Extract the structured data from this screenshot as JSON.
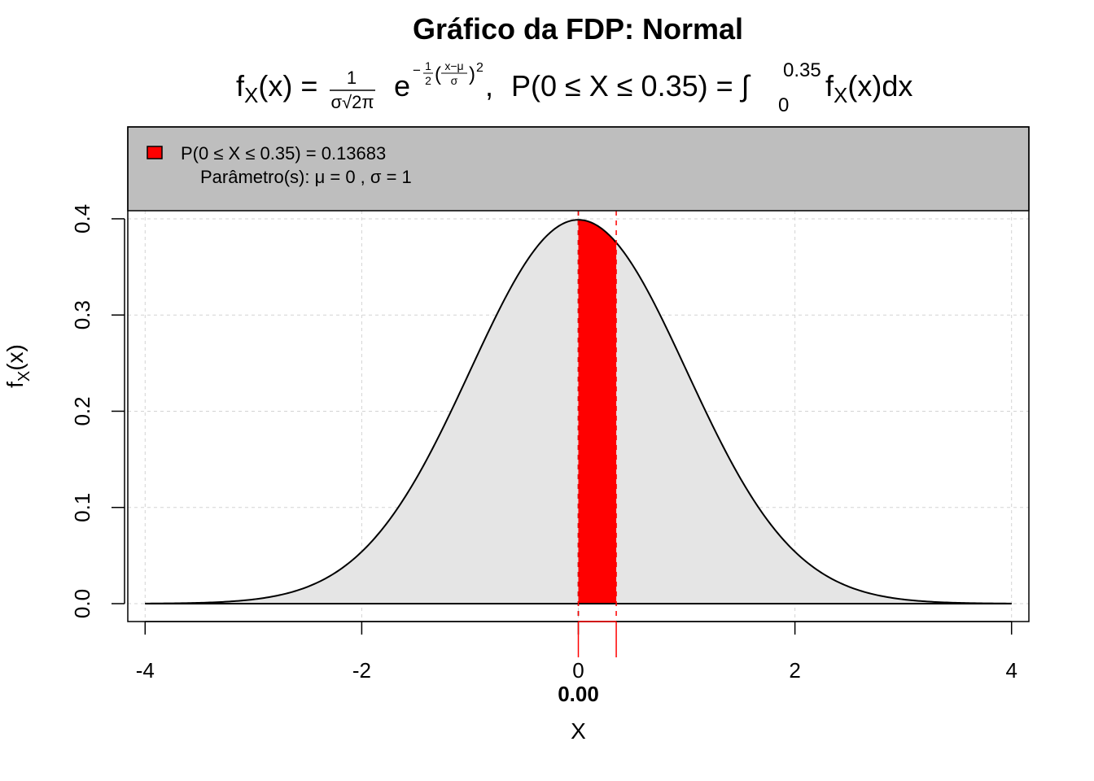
{
  "chart_data": {
    "type": "area",
    "title": "Gráfico da FDP: Normal",
    "subtitle": {
      "f_lhs": "f",
      "f_sub": "X",
      "f_arg": "(x) =",
      "frac_num": "1",
      "frac_den": "σ√2π",
      "e": "e",
      "exp_minus": "−",
      "exp_half_num": "1",
      "exp_half_den": "2",
      "exp_inner_num": "x−μ",
      "exp_inner_den": "σ",
      "exp_paren_open": "(",
      "exp_paren_close": ")",
      "exp_power": "2",
      "comma": ",",
      "prob": "P(0 ≤  X ≤  0.35) = ∫",
      "int_upper": "0.35",
      "int_lower": "0",
      "int_body_f": "f",
      "int_body_sub": "X",
      "int_body_rest": "(x)dx"
    },
    "xlabel": "X",
    "ylabel": {
      "main": "f",
      "sub": "X",
      "rest": "(x)"
    },
    "xlim": [
      -4.16,
      4.16
    ],
    "ylim": [
      -0.0186,
      0.4955
    ],
    "x_ticks": [
      -4,
      -2,
      0,
      2,
      4
    ],
    "x_tick_labels": [
      "-4",
      "-2",
      "0",
      "2",
      "4"
    ],
    "y_ticks": [
      0.0,
      0.1,
      0.2,
      0.3,
      0.4
    ],
    "y_tick_labels": [
      "0.0",
      "0.1",
      "0.2",
      "0.3",
      "0.4"
    ],
    "grid": true,
    "distribution": {
      "name": "Normal",
      "mu": 0,
      "sigma": 1,
      "x_range": [
        -4,
        4
      ]
    },
    "shaded_interval": {
      "from": 0,
      "to": 0.35,
      "probability": 0.13683,
      "color": "#ff0000"
    },
    "marker_label": "0.00",
    "legend": {
      "placement": "top",
      "entry1": "P(0 ≤  X ≤  0.35) = 0.13683",
      "entry2": "Parâmetro(s): μ = 0 , σ = 1",
      "background": "#bebebe"
    },
    "colors": {
      "curve_fill": "#e5e5e5",
      "curve_line": "#000000",
      "highlight": "#ff0000",
      "grid": "#d3d3d3"
    }
  }
}
